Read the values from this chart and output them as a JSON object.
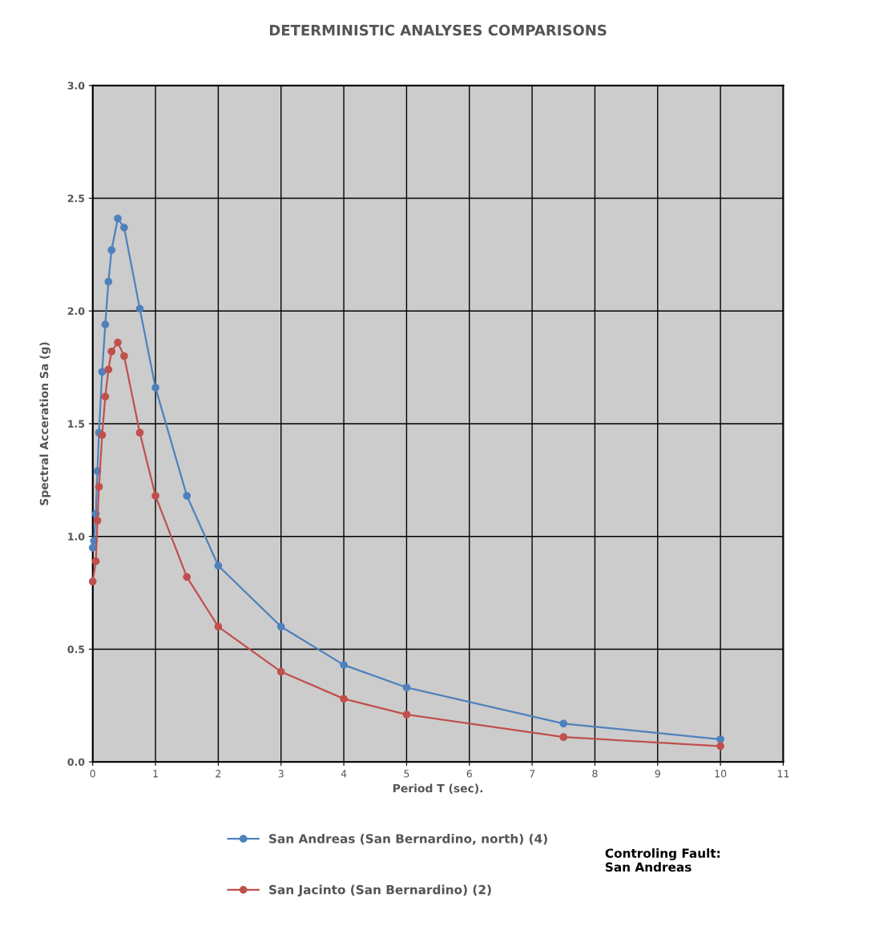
{
  "chart_data": {
    "type": "line",
    "title": "DETERMINISTIC ANALYSES COMPARISONS",
    "xlabel": "Period T (sec).",
    "ylabel": "Spectral Acceration Sa (g)",
    "xlim": [
      0,
      11
    ],
    "xticks": [
      0,
      1,
      2,
      3,
      4,
      5,
      6,
      7,
      8,
      9,
      10,
      11
    ],
    "ylim": [
      0,
      3.0
    ],
    "yticks": [
      {
        "value": 0,
        "label": "0.0"
      },
      {
        "value": 0.5,
        "label": "0.5"
      },
      {
        "value": 1.0,
        "label": "1.0"
      },
      {
        "value": 1.5,
        "label": "1.5"
      },
      {
        "value": 2.0,
        "label": "2.0"
      },
      {
        "value": 2.5,
        "label": "2.5"
      },
      {
        "value": 3.0,
        "label": "3.0"
      }
    ],
    "grid": true,
    "legend": "bottom",
    "marker": "circle",
    "line_style": "solid",
    "annotations": [
      "Controling Fault:\nSan Andreas"
    ],
    "series": [
      {
        "name": "San Andreas (San Bernardino, north) (4)",
        "color": "#4f81bd",
        "x": [
          0,
          0.02,
          0.05,
          0.075,
          0.1,
          0.15,
          0.2,
          0.25,
          0.3,
          0.4,
          0.5,
          0.75,
          1,
          1.5,
          2,
          3,
          4,
          5,
          7.5,
          10
        ],
        "values": [
          0.95,
          0.98,
          1.1,
          1.29,
          1.46,
          1.73,
          1.94,
          2.13,
          2.27,
          2.41,
          2.37,
          2.01,
          1.66,
          1.18,
          0.87,
          0.6,
          0.43,
          0.33,
          0.17,
          0.1
        ]
      },
      {
        "name": "San Jacinto (San Bernardino) (2)",
        "color": "#c0504d",
        "x": [
          0,
          0.05,
          0.075,
          0.1,
          0.15,
          0.2,
          0.25,
          0.3,
          0.4,
          0.5,
          0.75,
          1,
          1.5,
          2,
          3,
          4,
          5,
          7.5,
          10
        ],
        "values": [
          0.8,
          0.89,
          1.07,
          1.22,
          1.45,
          1.62,
          1.74,
          1.82,
          1.86,
          1.8,
          1.46,
          1.18,
          0.82,
          0.6,
          0.4,
          0.28,
          0.21,
          0.11,
          0.07
        ]
      }
    ]
  }
}
